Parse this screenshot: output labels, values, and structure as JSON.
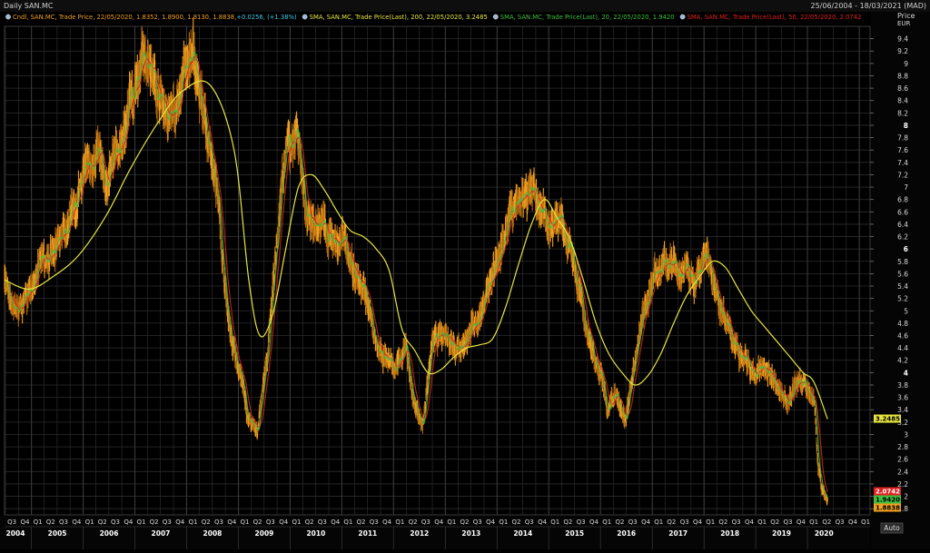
{
  "window": {
    "title": "Daily SAN.MC",
    "date_range": "25/06/2004 - 18/03/2021 (MAD)"
  },
  "legend": [
    {
      "text": "Cndl, SAN.MC, Trade Price,  22/05/2020, 1.8352, 1.8900, 1.8130, 1.8838, ",
      "extra": "+0.0256, (+1.38%)",
      "color": "#f0a020",
      "extra_color": "#40c8e0"
    },
    {
      "text": "SMA, SAN.MC, Trade Price(Last),  200,  22/05/2020, 3.2485",
      "extra": "",
      "color": "#e6e640",
      "extra_color": "#e6e640"
    },
    {
      "text": "SMA, SAN.MC, Trade Price(Last),  20,  22/05/2020, 1.9420",
      "extra": "",
      "color": "#3fbf3f",
      "extra_color": "#3fbf3f"
    },
    {
      "text": "SMA, SAN.MC, Trade Price(Last),  50,  22/05/2020, 2.0742",
      "extra": "",
      "color": "#e02020",
      "extra_color": "#e02020"
    }
  ],
  "axis": {
    "title": "Price",
    "unit": "EUR",
    "auto_label": "Auto",
    "y_ticks": [
      "9.4",
      "9.2",
      "9",
      "8.8",
      "8.6",
      "8.4",
      "8.2",
      "8",
      "7.8",
      "7.6",
      "7.4",
      "7.2",
      "7",
      "6.8",
      "6.6",
      "6.4",
      "6.2",
      "6",
      "5.8",
      "5.6",
      "5.4",
      "5.2",
      "5",
      "4.8",
      "4.6",
      "4.4",
      "4.2",
      "4",
      "3.8",
      "3.6",
      "3.4",
      "3.2",
      "3",
      "2.8",
      "2.6",
      "2.4",
      "2.2",
      "2",
      "1.8"
    ],
    "bold_ticks": [
      "8",
      "6",
      "4"
    ],
    "quarter_labels": [
      "Q3",
      "Q4",
      "Q1",
      "Q2",
      "Q3",
      "Q4",
      "Q1",
      "Q2",
      "Q3",
      "Q4",
      "Q1",
      "Q2",
      "Q3",
      "Q4",
      "Q1",
      "Q2",
      "Q3",
      "Q4",
      "Q1",
      "Q2",
      "Q3",
      "Q4",
      "Q1",
      "Q2",
      "Q3",
      "Q4",
      "Q1",
      "Q2",
      "Q3",
      "Q4",
      "Q1",
      "Q2",
      "Q3",
      "Q4",
      "Q1",
      "Q2",
      "Q3",
      "Q4",
      "Q1",
      "Q2",
      "Q3",
      "Q4",
      "Q1",
      "Q2",
      "Q3",
      "Q4",
      "Q1",
      "Q2",
      "Q3",
      "Q4",
      "Q1",
      "Q2",
      "Q3",
      "Q4",
      "Q1",
      "Q2",
      "Q3",
      "Q4",
      "Q1",
      "Q2",
      "Q3",
      "Q4",
      "Q1",
      "Q2",
      "Q3",
      "Q4",
      "Q1",
      "Q2",
      "Q3",
      "Q4"
    ],
    "year_labels": [
      "2004",
      "2005",
      "2006",
      "2007",
      "2008",
      "2009",
      "2010",
      "2011",
      "2012",
      "2013",
      "2014",
      "2015",
      "2016",
      "2017",
      "2018",
      "2019",
      "2020"
    ]
  },
  "tags": [
    {
      "label": "3.2485",
      "value": 3.2485,
      "bg": "#e6e640",
      "fg": "#000000"
    },
    {
      "label": "2.0742",
      "value": 2.0742,
      "bg": "#e02020",
      "fg": "#ffffff"
    },
    {
      "label": "1.9420",
      "value": 1.942,
      "bg": "#3fbf3f",
      "fg": "#000000"
    },
    {
      "label": "1.8838",
      "value": 1.8838,
      "bg": "#f0a020",
      "fg": "#000000"
    }
  ],
  "colors": {
    "background": "#000000",
    "grid": "#2c2c2c",
    "candle": "#f0a020",
    "candle_dark": "#b06810",
    "sma200": "#e6e640",
    "sma20": "#3fbf3f",
    "sma50": "#e02020",
    "axis_text": "#d8d8d8"
  },
  "chart_data": {
    "type": "line",
    "title": "Daily SAN.MC",
    "ylabel": "Price",
    "unit": "EUR",
    "ylim": [
      1.7,
      9.6
    ],
    "xlim": [
      "2004-06-25",
      "2021-03-18"
    ],
    "grid": true,
    "series": [
      {
        "name": "Cndl, SAN.MC, Trade Price",
        "style": "candlestick",
        "x": [
          "2004-06-25",
          "2004-08-15",
          "2004-10-01",
          "2004-12-15",
          "2005-03-01",
          "2005-06-01",
          "2005-09-01",
          "2005-12-01",
          "2006-02-15",
          "2006-04-15",
          "2006-06-15",
          "2006-09-01",
          "2006-12-01",
          "2007-02-15",
          "2007-04-01",
          "2007-06-15",
          "2007-09-01",
          "2007-10-20",
          "2007-12-01",
          "2008-02-15",
          "2008-04-20",
          "2008-06-15",
          "2008-08-15",
          "2008-10-15",
          "2008-12-01",
          "2009-03-01",
          "2009-05-15",
          "2009-08-01",
          "2009-10-15",
          "2009-12-01",
          "2010-02-15",
          "2010-04-15",
          "2010-06-15",
          "2010-09-01",
          "2010-11-15",
          "2011-01-15",
          "2011-04-01",
          "2011-06-15",
          "2011-08-15",
          "2011-11-01",
          "2012-01-15",
          "2012-04-01",
          "2012-06-01",
          "2012-07-25",
          "2012-10-01",
          "2013-01-15",
          "2013-04-01",
          "2013-07-01",
          "2013-10-01",
          "2014-01-15",
          "2014-04-01",
          "2014-06-15",
          "2014-09-15",
          "2014-11-15",
          "2015-01-15",
          "2015-03-15",
          "2015-06-01",
          "2015-08-15",
          "2015-10-01",
          "2016-01-15",
          "2016-02-15",
          "2016-04-15",
          "2016-06-27",
          "2016-09-01",
          "2016-11-01",
          "2017-01-15",
          "2017-04-01",
          "2017-06-15",
          "2017-08-15",
          "2017-11-01",
          "2018-01-26",
          "2018-04-01",
          "2018-06-01",
          "2018-08-15",
          "2018-10-15",
          "2018-12-20",
          "2019-03-01",
          "2019-06-01",
          "2019-08-15",
          "2019-10-15",
          "2019-12-15",
          "2020-01-20",
          "2020-02-20",
          "2020-03-16",
          "2020-04-15",
          "2020-05-22"
        ],
        "y": [
          5.5,
          5.1,
          4.95,
          5.3,
          5.7,
          5.95,
          6.3,
          6.9,
          7.4,
          7.6,
          7.0,
          7.6,
          8.3,
          8.8,
          9.1,
          8.4,
          8.2,
          8.0,
          8.8,
          9.2,
          8.3,
          7.4,
          6.9,
          5.0,
          4.4,
          3.4,
          3.0,
          4.5,
          6.4,
          7.5,
          8.05,
          6.7,
          6.4,
          6.55,
          6.0,
          6.2,
          5.6,
          5.4,
          4.6,
          4.25,
          4.1,
          4.4,
          3.5,
          3.15,
          4.5,
          4.6,
          4.35,
          4.7,
          5.1,
          6.0,
          6.4,
          6.85,
          6.95,
          6.6,
          6.3,
          6.5,
          6.1,
          5.3,
          4.6,
          3.9,
          3.4,
          3.7,
          3.2,
          4.2,
          5.0,
          5.6,
          5.8,
          5.7,
          5.65,
          5.6,
          5.9,
          5.2,
          4.8,
          4.4,
          4.2,
          4.0,
          4.1,
          3.7,
          3.5,
          3.8,
          3.85,
          3.7,
          3.6,
          2.5,
          2.1,
          1.8838
        ]
      },
      {
        "name": "SMA, SAN.MC, Trade Price(Last), 200",
        "x": [
          "2004-06-25",
          "2004-12-15",
          "2005-06-01",
          "2005-12-01",
          "2006-06-15",
          "2006-12-01",
          "2007-06-15",
          "2007-12-01",
          "2008-06-15",
          "2008-12-01",
          "2009-03-15",
          "2009-06-01",
          "2009-09-01",
          "2009-12-01",
          "2010-03-01",
          "2010-06-01",
          "2010-09-01",
          "2010-12-01",
          "2011-03-01",
          "2011-06-01",
          "2011-09-01",
          "2011-12-01",
          "2012-03-01",
          "2012-06-01",
          "2012-09-01",
          "2012-12-01",
          "2013-03-01",
          "2013-06-01",
          "2013-09-01",
          "2013-12-01",
          "2014-03-01",
          "2014-06-01",
          "2014-09-01",
          "2014-12-01",
          "2015-03-01",
          "2015-06-01",
          "2015-09-01",
          "2015-12-01",
          "2016-03-01",
          "2016-06-01",
          "2016-09-01",
          "2016-12-01",
          "2017-03-01",
          "2017-06-01",
          "2017-09-01",
          "2017-12-01",
          "2018-03-01",
          "2018-06-01",
          "2018-09-01",
          "2018-12-01",
          "2019-03-01",
          "2019-06-01",
          "2019-09-01",
          "2019-12-01",
          "2020-02-15",
          "2020-05-22"
        ],
        "y": [
          5.5,
          5.35,
          5.55,
          5.9,
          6.55,
          7.3,
          8.05,
          8.55,
          8.65,
          7.6,
          5.5,
          4.6,
          4.95,
          6.0,
          7.0,
          7.2,
          6.95,
          6.6,
          6.3,
          6.2,
          6.0,
          5.65,
          4.7,
          4.35,
          4.0,
          4.05,
          4.25,
          4.4,
          4.45,
          4.55,
          5.05,
          5.75,
          6.4,
          6.8,
          6.5,
          6.15,
          5.5,
          4.8,
          4.3,
          4.0,
          3.8,
          3.95,
          4.3,
          4.8,
          5.25,
          5.55,
          5.8,
          5.7,
          5.35,
          5.0,
          4.75,
          4.5,
          4.25,
          4.0,
          3.85,
          3.2485
        ]
      },
      {
        "name": "SMA, SAN.MC, Trade Price(Last), 20",
        "x": [
          "2020-05-22"
        ],
        "y": [
          1.942
        ]
      },
      {
        "name": "SMA, SAN.MC, Trade Price(Last), 50",
        "x": [
          "2020-05-22"
        ],
        "y": [
          2.0742
        ]
      }
    ]
  }
}
